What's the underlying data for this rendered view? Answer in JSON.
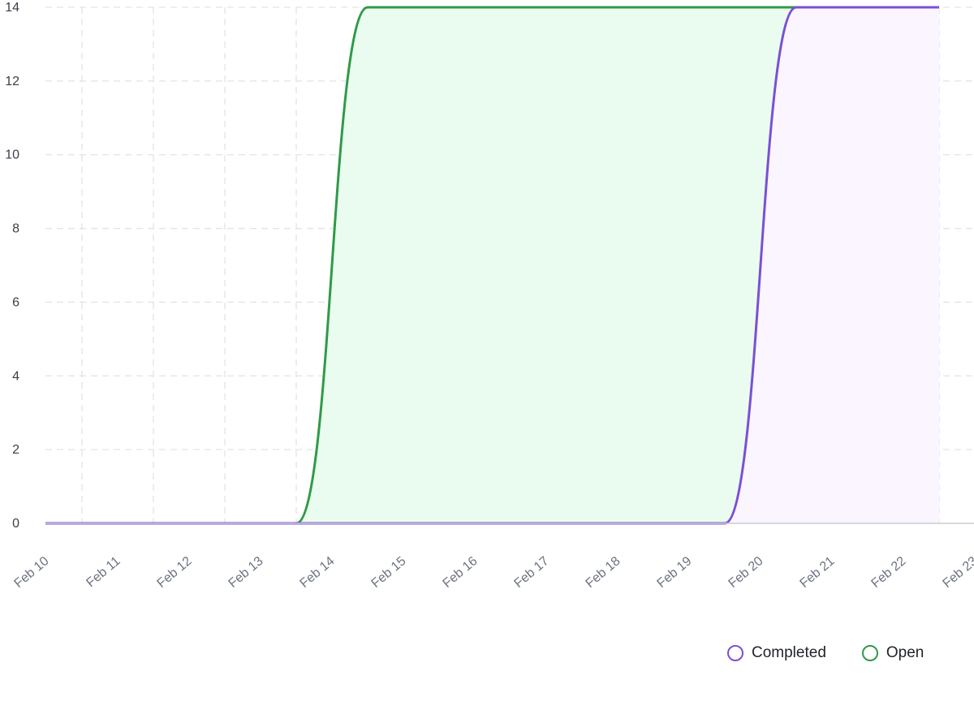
{
  "chart_data": {
    "type": "area",
    "title": "",
    "xlabel": "",
    "ylabel": "",
    "x": [
      "Feb 10",
      "Feb 11",
      "Feb 12",
      "Feb 13",
      "Feb 14",
      "Feb 15",
      "Feb 16",
      "Feb 17",
      "Feb 18",
      "Feb 19",
      "Feb 20",
      "Feb 21",
      "Feb 22",
      "Feb 23"
    ],
    "ylim": [
      0,
      14
    ],
    "yticks": [
      0,
      2,
      4,
      6,
      8,
      10,
      12,
      14
    ],
    "grid": true,
    "legend_position": "bottom-right",
    "series": [
      {
        "name": "Completed",
        "color": "#7b4fd6",
        "fill": "#faf5ff",
        "values": [
          0,
          0,
          0,
          0,
          0,
          0,
          0,
          0,
          0,
          0,
          0,
          14,
          14,
          14
        ]
      },
      {
        "name": "Open",
        "color": "#2f9a47",
        "fill": "#eafcef",
        "values": [
          0,
          0,
          0,
          0,
          0,
          14,
          14,
          14,
          14,
          14,
          14,
          14,
          14,
          14
        ]
      }
    ]
  }
}
